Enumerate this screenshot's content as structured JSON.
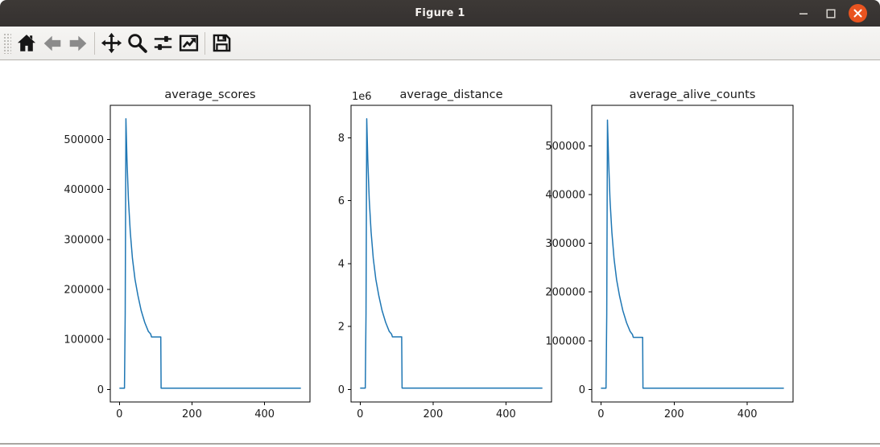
{
  "window": {
    "title": "Figure 1",
    "controls": {
      "minimize": "minimize",
      "maximize": "maximize",
      "close": "close"
    },
    "titlebar_bg": "#383431",
    "close_color": "#e95420"
  },
  "toolbar": {
    "icons": [
      "home-icon",
      "back-icon",
      "forward-icon",
      "pan-icon",
      "zoom-icon",
      "configure-subplots-icon",
      "edit-plot-icon",
      "save-icon"
    ]
  },
  "colors": {
    "line": "#1f77b4",
    "spine": "#000000",
    "tick_text": "#1a1a1a",
    "canvas_bg": "#ffffff"
  },
  "chart_data": [
    {
      "type": "line",
      "title": "average_scores",
      "offset_label": "",
      "x": [
        0,
        14,
        16,
        18,
        21,
        25,
        30,
        36,
        43,
        51,
        60,
        70,
        80,
        86,
        88.5,
        114,
        115,
        150,
        250,
        350,
        500
      ],
      "y": [
        2500,
        2500,
        150000,
        541000,
        460000,
        380000,
        315000,
        262000,
        220000,
        188000,
        158000,
        134000,
        116000,
        111000,
        105000,
        105000,
        2500,
        2500,
        2500,
        2500,
        2500
      ],
      "xlim": [
        -25,
        525
      ],
      "ylim": [
        -25000,
        568000
      ],
      "xticks": [
        {
          "v": 0,
          "label": "0"
        },
        {
          "v": 200,
          "label": "200"
        },
        {
          "v": 400,
          "label": "400"
        }
      ],
      "yticks": [
        {
          "v": 0,
          "label": "0"
        },
        {
          "v": 100000,
          "label": "100000"
        },
        {
          "v": 200000,
          "label": "200000"
        },
        {
          "v": 300000,
          "label": "300000"
        },
        {
          "v": 400000,
          "label": "400000"
        },
        {
          "v": 500000,
          "label": "500000"
        }
      ],
      "line_color": "#1f77b4",
      "grid": false,
      "legend": null
    },
    {
      "type": "line",
      "title": "average_distance",
      "offset_label": "1e6",
      "x": [
        0,
        14,
        16,
        18,
        21,
        25,
        30,
        36,
        43,
        51,
        60,
        70,
        80,
        86,
        88.5,
        114,
        115,
        150,
        250,
        350,
        500
      ],
      "y": [
        40000,
        40000,
        2390000,
        8600000,
        7310000,
        6040000,
        5010000,
        4170000,
        3500000,
        2990000,
        2510000,
        2130000,
        1840000,
        1760000,
        1670000,
        1670000,
        40000,
        40000,
        40000,
        40000,
        40000
      ],
      "xlim": [
        -25,
        525
      ],
      "ylim": [
        -400000,
        9030000
      ],
      "xticks": [
        {
          "v": 0,
          "label": "0"
        },
        {
          "v": 200,
          "label": "200"
        },
        {
          "v": 400,
          "label": "400"
        }
      ],
      "yticks": [
        {
          "v": 0,
          "label": "0"
        },
        {
          "v": 2000000,
          "label": "2"
        },
        {
          "v": 4000000,
          "label": "4"
        },
        {
          "v": 6000000,
          "label": "6"
        },
        {
          "v": 8000000,
          "label": "8"
        }
      ],
      "line_color": "#1f77b4",
      "grid": false,
      "legend": null
    },
    {
      "type": "line",
      "title": "average_alive_counts",
      "offset_label": "",
      "x": [
        0,
        14,
        16,
        18,
        21,
        25,
        30,
        36,
        43,
        51,
        60,
        70,
        80,
        86,
        88.5,
        114,
        115,
        150,
        250,
        350,
        500
      ],
      "y": [
        2500,
        2500,
        153000,
        553000,
        470000,
        388000,
        322000,
        268000,
        225000,
        192000,
        162000,
        137000,
        119000,
        113000,
        107000,
        107000,
        2500,
        2500,
        2500,
        2500,
        2500
      ],
      "xlim": [
        -25,
        525
      ],
      "ylim": [
        -25700,
        583300
      ],
      "xticks": [
        {
          "v": 0,
          "label": "0"
        },
        {
          "v": 200,
          "label": "200"
        },
        {
          "v": 400,
          "label": "400"
        }
      ],
      "yticks": [
        {
          "v": 0,
          "label": "0"
        },
        {
          "v": 100000,
          "label": "100000"
        },
        {
          "v": 200000,
          "label": "200000"
        },
        {
          "v": 300000,
          "label": "300000"
        },
        {
          "v": 400000,
          "label": "400000"
        },
        {
          "v": 500000,
          "label": "500000"
        }
      ],
      "line_color": "#1f77b4",
      "grid": false,
      "legend": null
    }
  ]
}
